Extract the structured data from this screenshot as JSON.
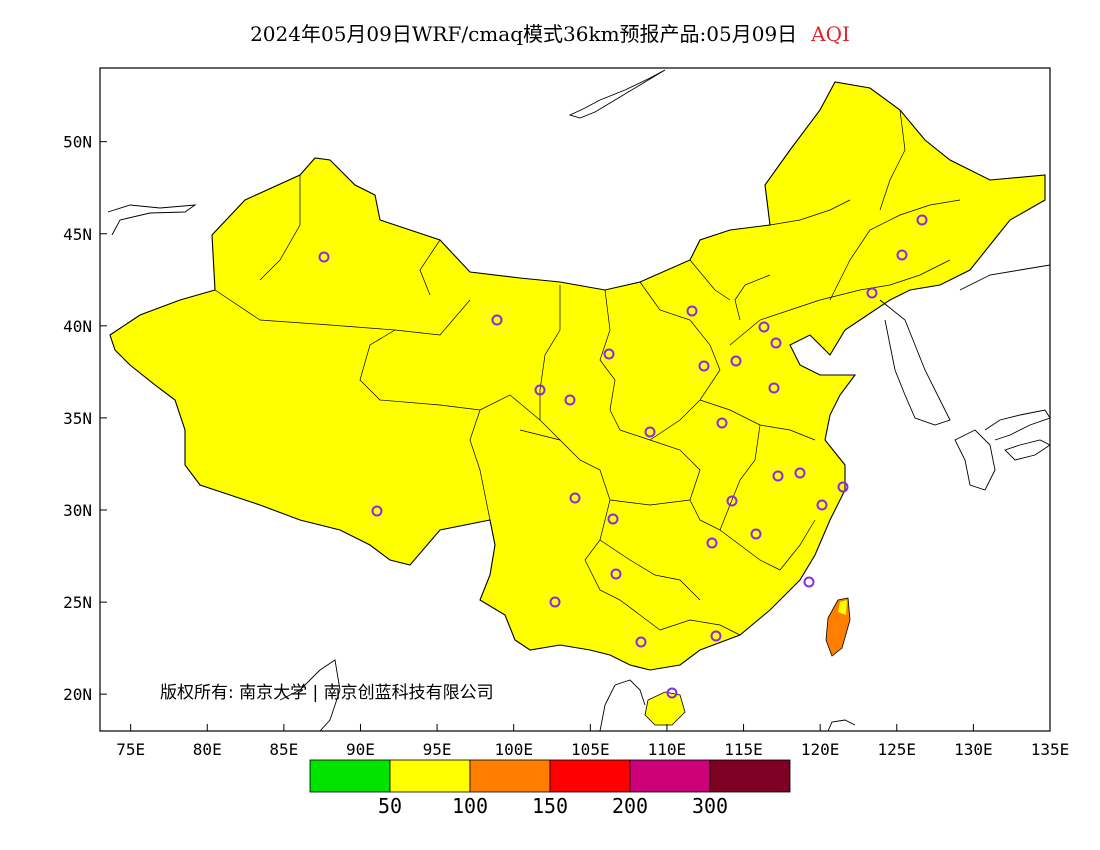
{
  "title": {
    "text": "2024年05月09日WRF/cmaq模式36km预报产品:05月09日",
    "variable": "AQI",
    "variable_color": "#e0242b"
  },
  "map": {
    "lon_ticks": [
      "75E",
      "80E",
      "85E",
      "90E",
      "95E",
      "100E",
      "105E",
      "110E",
      "115E",
      "120E",
      "125E",
      "130E",
      "135E"
    ],
    "lat_ticks": [
      "20N",
      "25N",
      "30N",
      "35N",
      "40N",
      "45N",
      "50N"
    ],
    "extent": {
      "lon": [
        73,
        135
      ],
      "lat": [
        18,
        54
      ]
    },
    "copyright": "版权所有: 南京大学 | 南京创蓝科技有限公司",
    "fill_colors": {
      "good": "#00e400",
      "moderate": "#ffff00",
      "sensitive": "#ff7e00",
      "unhealthy": "#ff0000",
      "very_unhealthy": "#cc0077",
      "hazardous": "#7e0023"
    },
    "city_marker_color": "#8a2be2"
  },
  "legend": {
    "colors": [
      "#00e400",
      "#ffff00",
      "#ff7e00",
      "#ff0000",
      "#cc0077",
      "#7e0023"
    ],
    "labels": [
      "50",
      "100",
      "150",
      "200",
      "300"
    ]
  }
}
